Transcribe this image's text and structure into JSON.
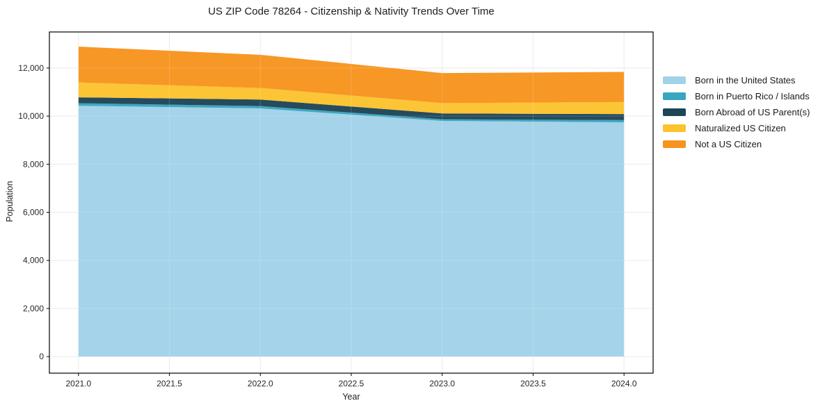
{
  "figure": {
    "title": "US ZIP Code 78264 - Citizenship & Nativity Trends Over Time",
    "xlabel": "Year",
    "ylabel": "Population"
  },
  "chart_data": {
    "type": "area",
    "stacked": true,
    "title": "US ZIP Code 78264 - Citizenship & Nativity Trends Over Time",
    "xlabel": "Year",
    "ylabel": "Population",
    "x": [
      2021,
      2022,
      2023,
      2024
    ],
    "series": [
      {
        "name": "Born in the United States",
        "color": "#a2d2e8",
        "values": [
          10430,
          10320,
          9800,
          9740
        ]
      },
      {
        "name": "Born in Puerto Rico / Islands",
        "color": "#38a5c1",
        "values": [
          105,
          100,
          70,
          95
        ]
      },
      {
        "name": "Born Abroad of US Parent(s)",
        "color": "#1f4558",
        "values": [
          245,
          270,
          240,
          250
        ]
      },
      {
        "name": "Naturalized US Citizen",
        "color": "#fcc32e",
        "values": [
          620,
          480,
          430,
          500
        ]
      },
      {
        "name": "Not a US Citizen",
        "color": "#f7941f",
        "values": [
          1490,
          1380,
          1250,
          1255
        ]
      }
    ],
    "totals": [
      12890,
      12550,
      11790,
      11840
    ],
    "x_tick_values": [
      2021.0,
      2021.5,
      2022.0,
      2022.5,
      2023.0,
      2023.5,
      2024.0
    ],
    "x_tick_labels": [
      "2021.0",
      "2021.5",
      "2022.0",
      "2022.5",
      "2023.0",
      "2023.5",
      "2024.0"
    ],
    "y_tick_values": [
      0,
      2000,
      4000,
      6000,
      8000,
      10000,
      12000
    ],
    "y_tick_labels": [
      "0",
      "2,000",
      "4,000",
      "6,000",
      "8,000",
      "10,000",
      "12,000"
    ],
    "xlim": [
      2020.84,
      2024.16
    ],
    "ylim": [
      -690,
      13500
    ],
    "grid": true,
    "grid_color": "#e7e7e7",
    "spine_color": "#000000",
    "legend_position": "right"
  }
}
